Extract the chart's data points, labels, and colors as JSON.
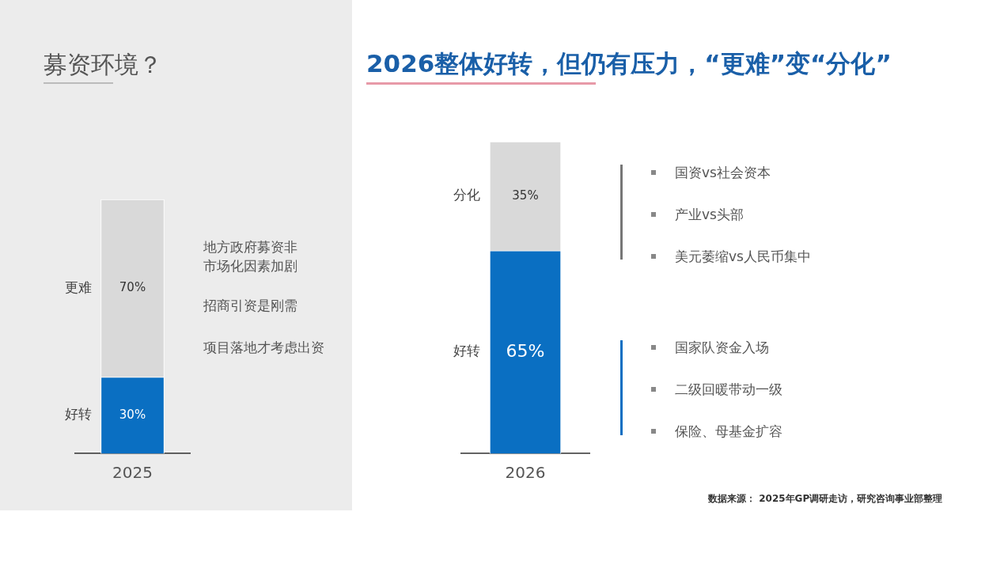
{
  "chart_data": [
    {
      "type": "bar",
      "title": "募资环境？",
      "categories": [
        "2025"
      ],
      "stacked": true,
      "series": [
        {
          "name": "好转",
          "color": "#0a6fc2",
          "values": [
            30
          ],
          "value_labels": [
            "30%"
          ]
        },
        {
          "name": "更难",
          "color": "#d9d9d9",
          "values": [
            70
          ],
          "value_labels": [
            "70%"
          ]
        }
      ],
      "annotations": [
        "地方政府募资非市场化因素加剧",
        "招商引资是刚需",
        "项目落地才考虑出资"
      ]
    },
    {
      "type": "bar",
      "title": "2026整体好转，但仍有压力，“更难”变“分化”",
      "categories": [
        "2026"
      ],
      "stacked": true,
      "series": [
        {
          "name": "好转",
          "color": "#0a6fc2",
          "values": [
            65
          ],
          "value_labels": [
            "65%"
          ]
        },
        {
          "name": "分化",
          "color": "#d9d9d9",
          "values": [
            35
          ],
          "value_labels": [
            "35%"
          ]
        }
      ],
      "annotations": [
        "国资vs社会资本",
        "产业vs头部",
        "美元萎缩vs人民币集中",
        "国家队资金入场",
        "二级回暖带动一级",
        "保险、母基金扩容",
        "数据来源： 2025年GP调研走访，研究咨询事业部整理"
      ]
    }
  ]
}
